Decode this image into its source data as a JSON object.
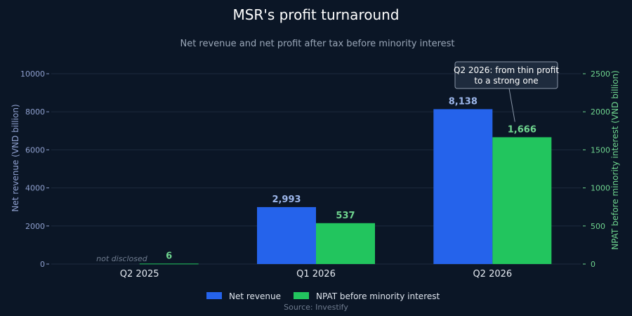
{
  "chart_data": {
    "type": "bar",
    "title": "MSR's profit turnaround",
    "subtitle": "Net revenue and net profit after tax before minority interest",
    "categories": [
      "Q2 2025",
      "Q1 2026",
      "Q2 2026"
    ],
    "series": [
      {
        "name": "Net revenue",
        "axis": "left",
        "color": "#2563eb",
        "values": [
          null,
          2993,
          8138
        ],
        "labels": [
          "",
          "2,993",
          "8,138"
        ]
      },
      {
        "name": "NPAT before minority interest",
        "axis": "right",
        "color": "#22c55e",
        "values": [
          6,
          537,
          1666
        ],
        "labels": [
          "6",
          "537",
          "1,666"
        ]
      }
    ],
    "ylabel": "Net revenue (VND billion)",
    "ylabel_right": "NPAT before minority interest (VND billion)",
    "ylim": [
      0,
      10000
    ],
    "ylim_right": [
      0,
      2500
    ],
    "yticks": [
      0,
      2000,
      4000,
      6000,
      8000,
      10000
    ],
    "yticks_right": [
      0,
      500,
      1000,
      1500,
      2000,
      2500
    ],
    "not_disclosed_label": "not disclosed",
    "annotation": {
      "lines": [
        "Q2 2026: from thin profit",
        "to a strong one"
      ],
      "target_category": "Q2 2026",
      "target_series": "NPAT before minority interest"
    },
    "legend_position": "bottom-center",
    "grid": true,
    "source": "Source: Investify"
  }
}
